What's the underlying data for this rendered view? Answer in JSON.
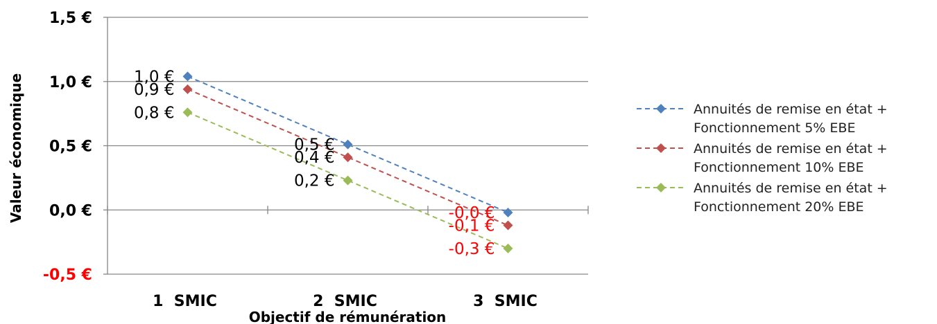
{
  "chart_data": {
    "type": "line",
    "categories": [
      "1  SMIC",
      "2  SMIC",
      "3  SMIC"
    ],
    "xlabel": "Objectif de rémunération",
    "ylabel": "Valeur économique",
    "ylim": [
      -0.5,
      1.5
    ],
    "y_ticks": [
      {
        "value": 1.5,
        "label": "1,5 €",
        "color": "#000000"
      },
      {
        "value": 1.0,
        "label": "1,0 €",
        "color": "#000000"
      },
      {
        "value": 0.5,
        "label": "0,5 €",
        "color": "#000000"
      },
      {
        "value": 0.0,
        "label": "0,0 €",
        "color": "#000000"
      },
      {
        "value": -0.5,
        "label": "-0,5 €",
        "color": "#ff0000"
      }
    ],
    "grid": "horizontal",
    "legend_position": "right",
    "series": [
      {
        "name_line1": "Annuités de remise en état +",
        "name_line2": "Fonctionnement 5% EBE",
        "color": "#4f81bd",
        "values": [
          1.04,
          0.51,
          -0.02
        ],
        "labels": [
          "1,0 €",
          "0,5 €",
          "-0,0 €"
        ],
        "label_colors": [
          "#000000",
          "#000000",
          "#ff0000"
        ]
      },
      {
        "name_line1": "Annuités de remise en état +",
        "name_line2": "Fonctionnement 10% EBE",
        "color": "#c0504d",
        "values": [
          0.94,
          0.41,
          -0.12
        ],
        "labels": [
          "0,9 €",
          "0,4 €",
          "-0,1 €"
        ],
        "label_colors": [
          "#000000",
          "#000000",
          "#ff0000"
        ]
      },
      {
        "name_line1": "Annuités de remise en état +",
        "name_line2": "Fonctionnement 20% EBE",
        "color": "#9bbb59",
        "values": [
          0.76,
          0.23,
          -0.3
        ],
        "labels": [
          "0,8 €",
          "0,2 €",
          "-0,3 €"
        ],
        "label_colors": [
          "#000000",
          "#000000",
          "#ff0000"
        ]
      }
    ]
  }
}
